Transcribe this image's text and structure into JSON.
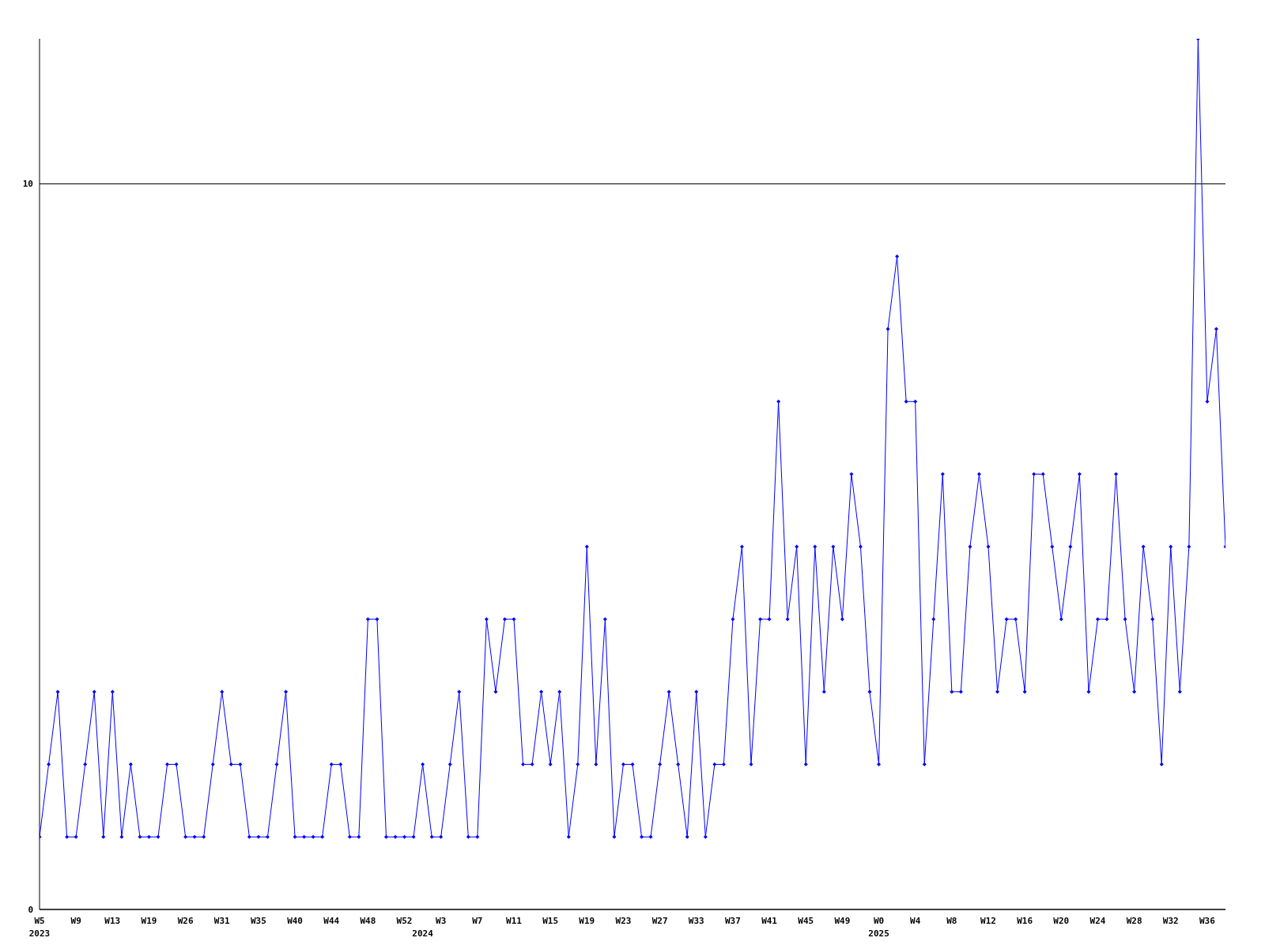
{
  "chart_data": {
    "type": "line",
    "categories": [
      "W5\n2023",
      null,
      null,
      null,
      "W9",
      null,
      null,
      null,
      "W13",
      null,
      null,
      null,
      "W19",
      null,
      null,
      null,
      "W26",
      null,
      null,
      null,
      "W31",
      null,
      null,
      null,
      "W35",
      null,
      null,
      null,
      "W40",
      null,
      null,
      null,
      "W44",
      null,
      null,
      null,
      "W48",
      null,
      null,
      null,
      "W52",
      null,
      "\n2024",
      null,
      "W3",
      null,
      null,
      null,
      "W7",
      null,
      null,
      null,
      "W11",
      null,
      null,
      null,
      "W15",
      null,
      null,
      null,
      "W19",
      null,
      null,
      null,
      "W23",
      null,
      null,
      null,
      "W27",
      null,
      null,
      null,
      "W33",
      null,
      null,
      null,
      "W37",
      null,
      null,
      null,
      "W41",
      null,
      null,
      null,
      "W45",
      null,
      null,
      null,
      "W49",
      null,
      null,
      null,
      "W0\n2025",
      null,
      null,
      null,
      "W4",
      null,
      null,
      null,
      "W8",
      null,
      null,
      null,
      "W12",
      null,
      null,
      null,
      "W16",
      null,
      null,
      null,
      "W20",
      null,
      null,
      null,
      "W24",
      null,
      null,
      null,
      "W28",
      null,
      null,
      null,
      "W32",
      null,
      null,
      null,
      "W36",
      null,
      null
    ],
    "series": [
      {
        "color": "#0000ff",
        "values": [
          1,
          2,
          3,
          1,
          1,
          2,
          3,
          1,
          3,
          1,
          2,
          1,
          1,
          1,
          2,
          2,
          1,
          1,
          1,
          2,
          3,
          2,
          2,
          1,
          1,
          1,
          2,
          3,
          1,
          1,
          1,
          1,
          2,
          2,
          1,
          1,
          4,
          4,
          1,
          1,
          1,
          1,
          2,
          1,
          1,
          2,
          3,
          1,
          1,
          4,
          3,
          4,
          4,
          2,
          2,
          3,
          2,
          3,
          1,
          2,
          5,
          2,
          4,
          1,
          2,
          2,
          1,
          1,
          2,
          3,
          2,
          1,
          3,
          1,
          2,
          2,
          4,
          5,
          2,
          4,
          4,
          7,
          4,
          5,
          2,
          5,
          3,
          5,
          4,
          6,
          5,
          3,
          2,
          8,
          9,
          7,
          7,
          2,
          4,
          6,
          3,
          3,
          5,
          6,
          5,
          3,
          4,
          4,
          3,
          6,
          6,
          5,
          4,
          5,
          6,
          3,
          4,
          4,
          6,
          4,
          3,
          5,
          4,
          2,
          5,
          3,
          5,
          12,
          7,
          8,
          5
        ]
      }
    ],
    "ylim": [
      0,
      12
    ],
    "yticks": [
      0,
      10
    ],
    "grid": "y",
    "marker": "diamond",
    "legend": false
  }
}
